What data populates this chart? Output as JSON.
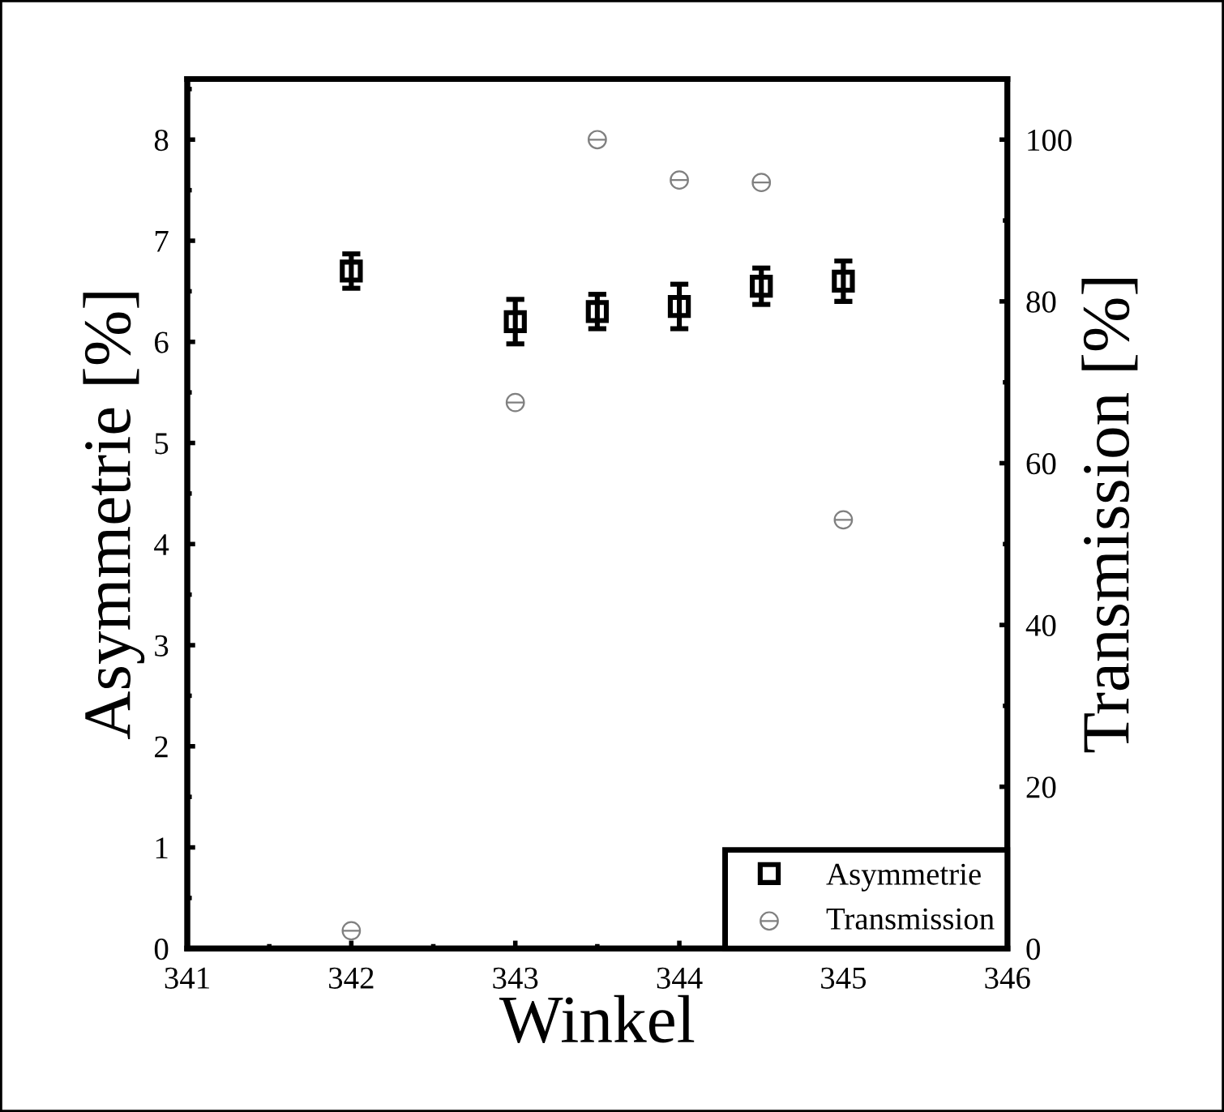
{
  "chart_data": {
    "type": "scatter",
    "xlabel": "Winkel",
    "ylabel": "Asymmetrie [%]",
    "y2label": "Transmission [%]",
    "xlim": [
      341,
      346
    ],
    "xticks": [
      341,
      342,
      343,
      344,
      345,
      346
    ],
    "ylim": [
      0,
      8.6
    ],
    "yticks": [
      0,
      1,
      2,
      3,
      4,
      5,
      6,
      7,
      8
    ],
    "y2lim": [
      0,
      107.5
    ],
    "y2ticks": [
      0,
      20,
      40,
      60,
      80,
      100
    ],
    "grid": false,
    "legend": "bottom right",
    "series": [
      {
        "name": "Asymmetrie",
        "color": "#000000",
        "marker": "square",
        "x": [
          342,
          343,
          343.5,
          344,
          344.5,
          345
        ],
        "values": [
          6.7,
          6.2,
          6.3,
          6.35,
          6.55,
          6.6
        ],
        "errors": [
          0.17,
          0.22,
          0.17,
          0.22,
          0.18,
          0.2
        ]
      },
      {
        "name": "Transmission",
        "color": "#808080",
        "axis": "y2",
        "x": [
          342,
          343,
          343.5,
          344,
          344.5,
          345
        ],
        "values": [
          2.2,
          67.5,
          100,
          95,
          94.7,
          53
        ]
      }
    ]
  }
}
